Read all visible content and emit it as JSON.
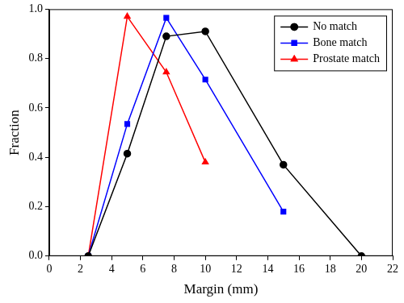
{
  "chart_data": {
    "type": "line",
    "x_label": "Margin (mm)",
    "y_label": "Fraction",
    "x": [
      2.5,
      5,
      7.5,
      10,
      15,
      20
    ],
    "series": [
      {
        "name": "No match",
        "color": "#000000",
        "marker": "circle",
        "values": [
          0,
          0.415,
          0.89,
          0.91,
          0.37,
          0
        ]
      },
      {
        "name": "Bone match",
        "color": "#0000ff",
        "marker": "square",
        "values": [
          0,
          0.535,
          0.965,
          0.715,
          0.18,
          null
        ]
      },
      {
        "name": "Prostate match",
        "color": "#ff0000",
        "marker": "triangle",
        "values": [
          0,
          0.97,
          0.745,
          0.38,
          null,
          null
        ]
      }
    ],
    "xlim": [
      0,
      22
    ],
    "xticks": [
      0,
      2,
      4,
      6,
      8,
      10,
      12,
      14,
      16,
      18,
      20,
      22
    ],
    "ylim": [
      0,
      1
    ],
    "yticks": [
      {
        "value": 0,
        "label": "0.0"
      },
      0.2,
      0.4,
      0.6,
      0.8,
      {
        "value": 1,
        "label": "1.0"
      }
    ],
    "grid": false,
    "legend": "upper right"
  }
}
